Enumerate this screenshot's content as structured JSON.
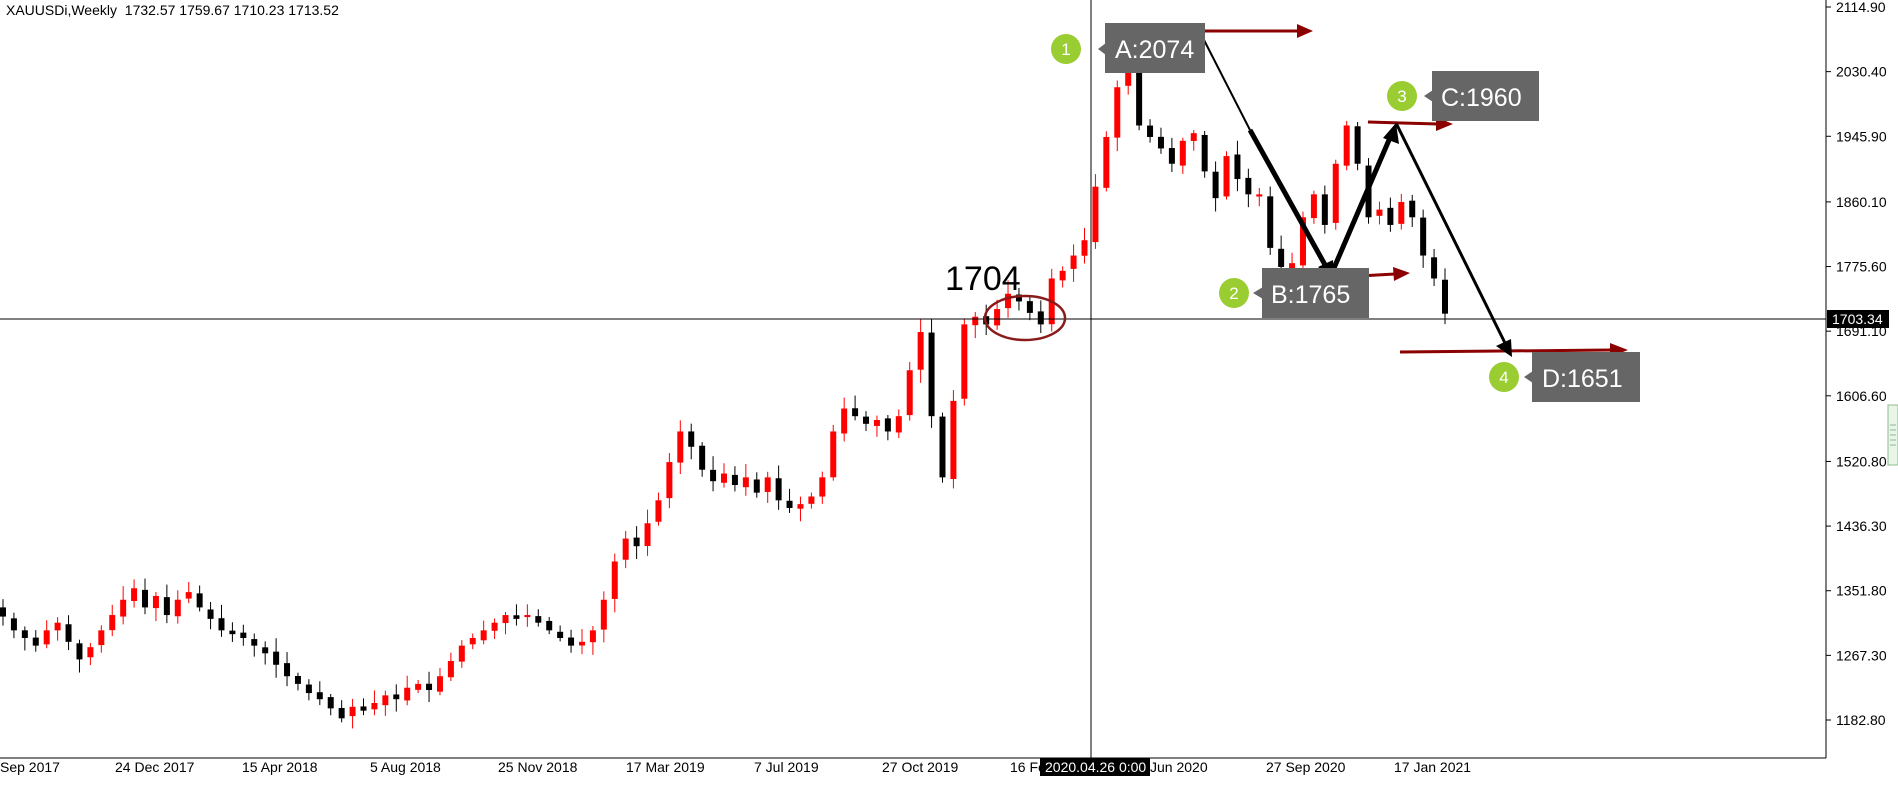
{
  "header": {
    "symbol": "XAUUSDi,Weekly",
    "ohlc": "1732.57 1759.67 1710.23 1713.52"
  },
  "crosshair": {
    "time_label": "2020.04.26 0:00",
    "price_label": "1703.34"
  },
  "colors": {
    "bull": "#ff0000",
    "bear": "#000000",
    "arrow_red": "#8b0000",
    "badge_green": "#9acd32",
    "label_bg": "#666666",
    "circle": "#8b1a1a"
  },
  "chart_data": {
    "type": "candlestick",
    "title": "XAUUSDi,Weekly",
    "y_ticks": [
      "2114.90",
      "2030.40",
      "1945.90",
      "1860.10",
      "1775.60",
      "1691.10",
      "1606.60",
      "1520.80",
      "1436.30",
      "1351.80",
      "1267.30",
      "1182.80"
    ],
    "x_ticks": [
      "Sep 2017",
      "24 Dec 2017",
      "15 Apr 2018",
      "5 Aug 2018",
      "25 Nov 2018",
      "17 Mar 2019",
      "7 Jul 2019",
      "27 Oct 2019",
      "16 Feb 2020",
      "Jun 2020",
      "27 Sep 2020",
      "17 Jan 2021"
    ],
    "ylim": [
      1160,
      2125
    ],
    "close_path": [
      1318,
      1300,
      1290,
      1280,
      1300,
      1310,
      1285,
      1262,
      1278,
      1300,
      1320,
      1340,
      1355,
      1330,
      1345,
      1320,
      1340,
      1350,
      1330,
      1315,
      1300,
      1295,
      1290,
      1280,
      1270,
      1255,
      1240,
      1230,
      1218,
      1210,
      1198,
      1185,
      1200,
      1195,
      1205,
      1215,
      1210,
      1225,
      1230,
      1222,
      1240,
      1260,
      1280,
      1290,
      1300,
      1310,
      1320,
      1315,
      1320,
      1310,
      1300,
      1290,
      1280,
      1285,
      1300,
      1340,
      1390,
      1420,
      1410,
      1440,
      1470,
      1520,
      1560,
      1540,
      1510,
      1495,
      1505,
      1490,
      1500,
      1480,
      1500,
      1470,
      1460,
      1465,
      1475,
      1500,
      1560,
      1590,
      1580,
      1570,
      1575,
      1560,
      1580,
      1640,
      1690,
      1580,
      1500,
      1600,
      1700,
      1710,
      1700,
      1720,
      1740,
      1730,
      1715,
      1700,
      1760,
      1770,
      1790,
      1810,
      1880,
      1945,
      2010,
      2074,
      1960,
      1945,
      1930,
      1910,
      1940,
      1950,
      1900,
      1865,
      1920,
      1890,
      1870,
      1870,
      1800,
      1775,
      1780,
      1840,
      1870,
      1830,
      1910,
      1960,
      1910,
      1840,
      1850,
      1830,
      1860,
      1840,
      1790,
      1760,
      1714
    ],
    "annotations": [
      {
        "badge": "1",
        "label": "A:2074",
        "price": 2074
      },
      {
        "badge": "2",
        "label": "B:1765",
        "price": 1765
      },
      {
        "badge": "3",
        "label": "C:1960",
        "price": 1960
      },
      {
        "badge": "4",
        "label": "D:1651",
        "price": 1651
      }
    ],
    "marker_text": "1704",
    "marker_price": 1704
  }
}
